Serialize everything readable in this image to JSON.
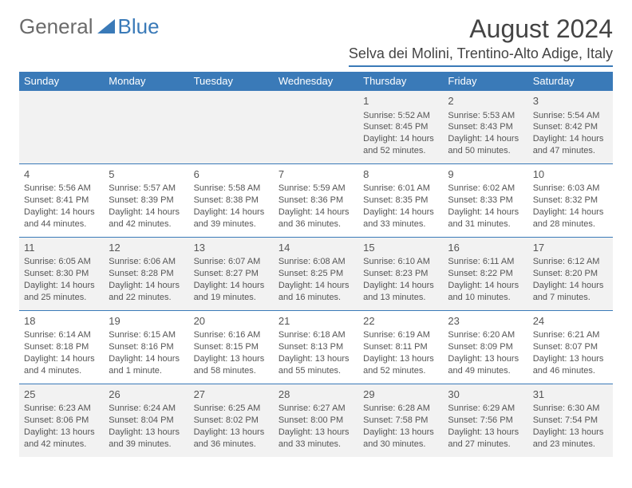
{
  "brand": {
    "part1": "General",
    "part2": "Blue"
  },
  "title": "August 2024",
  "location": "Selva dei Molini, Trentino-Alto Adige, Italy",
  "colors": {
    "header_bg": "#3a7ab8",
    "header_text": "#ffffff",
    "row_odd_bg": "#f2f2f2",
    "row_even_bg": "#ffffff",
    "text": "#555555",
    "brand_gray": "#6b6b6b",
    "brand_blue": "#3a7ab8",
    "rule": "#3a7ab8"
  },
  "typography": {
    "title_fontsize": 32,
    "location_fontsize": 18,
    "dayhead_fontsize": 13,
    "cell_fontsize": 11,
    "daynum_fontsize": 13
  },
  "dayNames": [
    "Sunday",
    "Monday",
    "Tuesday",
    "Wednesday",
    "Thursday",
    "Friday",
    "Saturday"
  ],
  "weeks": [
    [
      null,
      null,
      null,
      null,
      {
        "n": "1",
        "sr": "Sunrise: 5:52 AM",
        "ss": "Sunset: 8:45 PM",
        "dl": "Daylight: 14 hours and 52 minutes."
      },
      {
        "n": "2",
        "sr": "Sunrise: 5:53 AM",
        "ss": "Sunset: 8:43 PM",
        "dl": "Daylight: 14 hours and 50 minutes."
      },
      {
        "n": "3",
        "sr": "Sunrise: 5:54 AM",
        "ss": "Sunset: 8:42 PM",
        "dl": "Daylight: 14 hours and 47 minutes."
      }
    ],
    [
      {
        "n": "4",
        "sr": "Sunrise: 5:56 AM",
        "ss": "Sunset: 8:41 PM",
        "dl": "Daylight: 14 hours and 44 minutes."
      },
      {
        "n": "5",
        "sr": "Sunrise: 5:57 AM",
        "ss": "Sunset: 8:39 PM",
        "dl": "Daylight: 14 hours and 42 minutes."
      },
      {
        "n": "6",
        "sr": "Sunrise: 5:58 AM",
        "ss": "Sunset: 8:38 PM",
        "dl": "Daylight: 14 hours and 39 minutes."
      },
      {
        "n": "7",
        "sr": "Sunrise: 5:59 AM",
        "ss": "Sunset: 8:36 PM",
        "dl": "Daylight: 14 hours and 36 minutes."
      },
      {
        "n": "8",
        "sr": "Sunrise: 6:01 AM",
        "ss": "Sunset: 8:35 PM",
        "dl": "Daylight: 14 hours and 33 minutes."
      },
      {
        "n": "9",
        "sr": "Sunrise: 6:02 AM",
        "ss": "Sunset: 8:33 PM",
        "dl": "Daylight: 14 hours and 31 minutes."
      },
      {
        "n": "10",
        "sr": "Sunrise: 6:03 AM",
        "ss": "Sunset: 8:32 PM",
        "dl": "Daylight: 14 hours and 28 minutes."
      }
    ],
    [
      {
        "n": "11",
        "sr": "Sunrise: 6:05 AM",
        "ss": "Sunset: 8:30 PM",
        "dl": "Daylight: 14 hours and 25 minutes."
      },
      {
        "n": "12",
        "sr": "Sunrise: 6:06 AM",
        "ss": "Sunset: 8:28 PM",
        "dl": "Daylight: 14 hours and 22 minutes."
      },
      {
        "n": "13",
        "sr": "Sunrise: 6:07 AM",
        "ss": "Sunset: 8:27 PM",
        "dl": "Daylight: 14 hours and 19 minutes."
      },
      {
        "n": "14",
        "sr": "Sunrise: 6:08 AM",
        "ss": "Sunset: 8:25 PM",
        "dl": "Daylight: 14 hours and 16 minutes."
      },
      {
        "n": "15",
        "sr": "Sunrise: 6:10 AM",
        "ss": "Sunset: 8:23 PM",
        "dl": "Daylight: 14 hours and 13 minutes."
      },
      {
        "n": "16",
        "sr": "Sunrise: 6:11 AM",
        "ss": "Sunset: 8:22 PM",
        "dl": "Daylight: 14 hours and 10 minutes."
      },
      {
        "n": "17",
        "sr": "Sunrise: 6:12 AM",
        "ss": "Sunset: 8:20 PM",
        "dl": "Daylight: 14 hours and 7 minutes."
      }
    ],
    [
      {
        "n": "18",
        "sr": "Sunrise: 6:14 AM",
        "ss": "Sunset: 8:18 PM",
        "dl": "Daylight: 14 hours and 4 minutes."
      },
      {
        "n": "19",
        "sr": "Sunrise: 6:15 AM",
        "ss": "Sunset: 8:16 PM",
        "dl": "Daylight: 14 hours and 1 minute."
      },
      {
        "n": "20",
        "sr": "Sunrise: 6:16 AM",
        "ss": "Sunset: 8:15 PM",
        "dl": "Daylight: 13 hours and 58 minutes."
      },
      {
        "n": "21",
        "sr": "Sunrise: 6:18 AM",
        "ss": "Sunset: 8:13 PM",
        "dl": "Daylight: 13 hours and 55 minutes."
      },
      {
        "n": "22",
        "sr": "Sunrise: 6:19 AM",
        "ss": "Sunset: 8:11 PM",
        "dl": "Daylight: 13 hours and 52 minutes."
      },
      {
        "n": "23",
        "sr": "Sunrise: 6:20 AM",
        "ss": "Sunset: 8:09 PM",
        "dl": "Daylight: 13 hours and 49 minutes."
      },
      {
        "n": "24",
        "sr": "Sunrise: 6:21 AM",
        "ss": "Sunset: 8:07 PM",
        "dl": "Daylight: 13 hours and 46 minutes."
      }
    ],
    [
      {
        "n": "25",
        "sr": "Sunrise: 6:23 AM",
        "ss": "Sunset: 8:06 PM",
        "dl": "Daylight: 13 hours and 42 minutes."
      },
      {
        "n": "26",
        "sr": "Sunrise: 6:24 AM",
        "ss": "Sunset: 8:04 PM",
        "dl": "Daylight: 13 hours and 39 minutes."
      },
      {
        "n": "27",
        "sr": "Sunrise: 6:25 AM",
        "ss": "Sunset: 8:02 PM",
        "dl": "Daylight: 13 hours and 36 minutes."
      },
      {
        "n": "28",
        "sr": "Sunrise: 6:27 AM",
        "ss": "Sunset: 8:00 PM",
        "dl": "Daylight: 13 hours and 33 minutes."
      },
      {
        "n": "29",
        "sr": "Sunrise: 6:28 AM",
        "ss": "Sunset: 7:58 PM",
        "dl": "Daylight: 13 hours and 30 minutes."
      },
      {
        "n": "30",
        "sr": "Sunrise: 6:29 AM",
        "ss": "Sunset: 7:56 PM",
        "dl": "Daylight: 13 hours and 27 minutes."
      },
      {
        "n": "31",
        "sr": "Sunrise: 6:30 AM",
        "ss": "Sunset: 7:54 PM",
        "dl": "Daylight: 13 hours and 23 minutes."
      }
    ]
  ]
}
